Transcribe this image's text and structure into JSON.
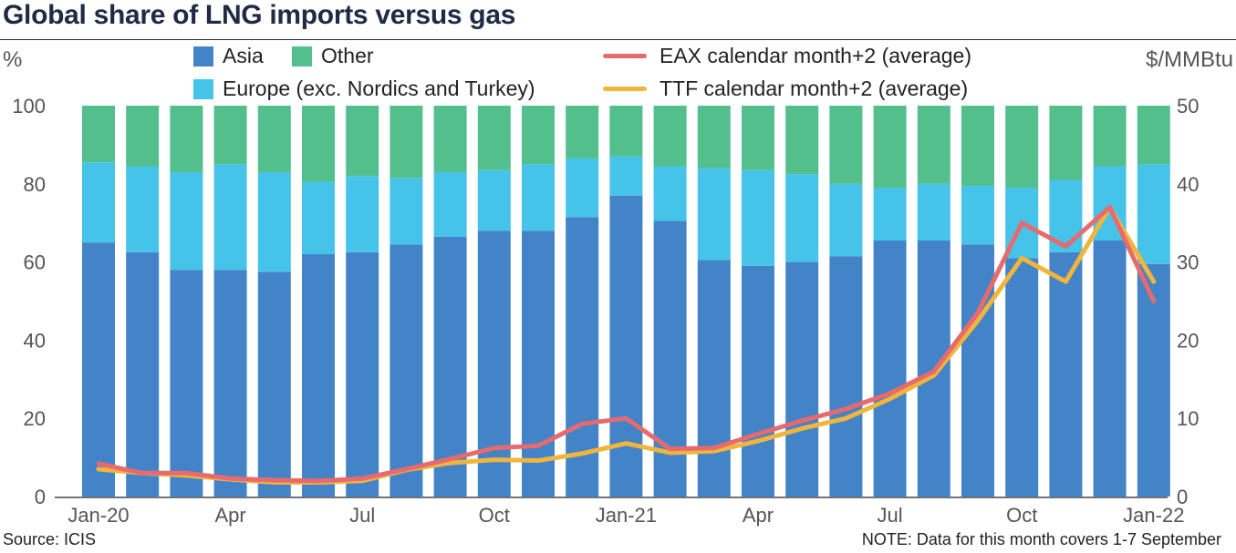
{
  "title": "Global share of LNG imports versus gas",
  "left_unit": "%",
  "right_unit": "$/MMBtu",
  "source": "Source: ICIS",
  "note": "NOTE: Data for this month covers 1-7 September",
  "colors": {
    "asia": "#4384c9",
    "europe": "#45c3e9",
    "other": "#52bf8c",
    "eax": "#e66a6e",
    "ttf": "#f2b53c"
  },
  "chart_data": {
    "type": "bar",
    "stacked": true,
    "categories": [
      "Jan-20",
      "Feb-20",
      "Mar-20",
      "Apr-20",
      "May-20",
      "Jun-20",
      "Jul-20",
      "Aug-20",
      "Sep-20",
      "Oct-20",
      "Nov-20",
      "Dec-20",
      "Jan-21",
      "Feb-21",
      "Mar-21",
      "Apr-21",
      "May-21",
      "Jun-21",
      "Jul-21",
      "Aug-21",
      "Sep-21",
      "Oct-21",
      "Nov-21",
      "Dec-21",
      "Jan-22"
    ],
    "x_tick_labels": [
      "Jan-20",
      "Apr",
      "Jul",
      "Oct",
      "Jan-21",
      "Apr",
      "Jul",
      "Oct",
      "Jan-22"
    ],
    "x_tick_indices": [
      0,
      3,
      6,
      9,
      12,
      15,
      18,
      21,
      24
    ],
    "left_axis": {
      "label": "%",
      "ylim": [
        0,
        100
      ],
      "ticks": [
        "0",
        "20",
        "40",
        "60",
        "80",
        "100"
      ]
    },
    "right_axis": {
      "label": "$/MMBtu",
      "ylim": [
        0,
        50
      ],
      "ticks": [
        "0",
        "10",
        "20",
        "30",
        "40",
        "50"
      ]
    },
    "series": [
      {
        "name": "Asia",
        "axis": "left",
        "kind": "bar",
        "values": [
          65,
          62.5,
          58,
          58,
          57.5,
          62,
          62.5,
          64.5,
          66.5,
          68,
          68,
          71.5,
          77,
          70.5,
          60.5,
          59,
          60,
          61.5,
          65.5,
          65.5,
          64.5,
          61,
          62.5,
          65.5,
          59.5
        ]
      },
      {
        "name": "Europe (exc. Nordics and Turkey)",
        "axis": "left",
        "kind": "bar",
        "values": [
          20.5,
          22,
          25,
          27,
          25.5,
          18.5,
          19.5,
          17,
          16.5,
          15.5,
          17,
          15,
          10,
          14,
          23.5,
          24.5,
          22.5,
          18.5,
          13.5,
          14.5,
          15,
          18,
          18.5,
          19,
          25.5
        ]
      },
      {
        "name": "Other",
        "axis": "left",
        "kind": "bar",
        "values": [
          14.5,
          15.5,
          17,
          15,
          17,
          19.5,
          18,
          18.5,
          17,
          16.5,
          15,
          13.5,
          13,
          15.5,
          16,
          16.5,
          17.5,
          20,
          21,
          20,
          20.5,
          21,
          19,
          15.5,
          15
        ]
      },
      {
        "name": "EAX calendar month+2 (average)",
        "axis": "right",
        "kind": "line",
        "values": [
          4.2,
          3,
          3,
          2.3,
          2.1,
          2,
          2.3,
          3.5,
          4.8,
          6.2,
          6.5,
          9.3,
          10,
          6.1,
          6.2,
          8,
          9.7,
          11.2,
          13.2,
          16,
          23.5,
          35,
          32,
          37,
          25
        ]
      },
      {
        "name": "TTF calendar month+2 (average)",
        "axis": "right",
        "kind": "line",
        "values": [
          3.5,
          3,
          2.7,
          2.2,
          1.8,
          1.8,
          2,
          3.4,
          4.3,
          4.7,
          4.6,
          5.5,
          6.8,
          5.6,
          5.8,
          7.1,
          8.7,
          10,
          12.5,
          15.5,
          22.5,
          30.5,
          27.5,
          37,
          27.5
        ]
      }
    ],
    "grid": false,
    "legend_position": "top"
  }
}
